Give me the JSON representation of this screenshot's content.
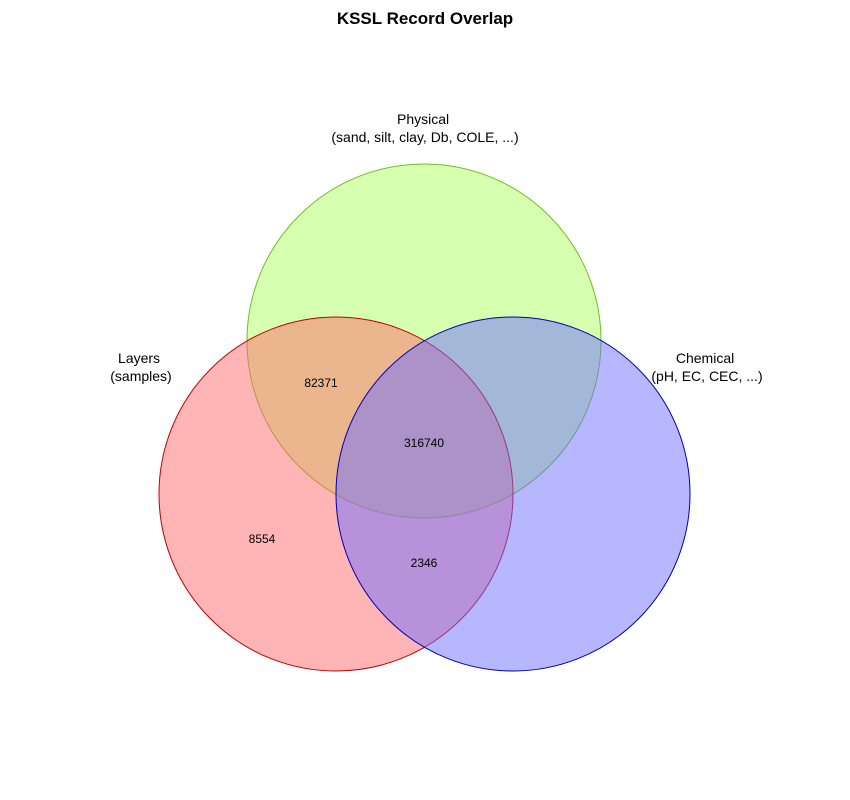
{
  "title": "KSSL Record Overlap",
  "sets": {
    "physical": {
      "line1": "Physical",
      "line2": "(sand, silt, clay, Db, COLE, ...)",
      "fill": "#d6ffb0",
      "stroke": "#6fbf1f"
    },
    "layers": {
      "line1": "Layers",
      "line2": "(samples)",
      "fill": "#ff6b6b",
      "stroke": "#c00000"
    },
    "chemical": {
      "line1": "Chemical",
      "line2": "(pH, EC, CEC, ...)",
      "fill": "#7070ff",
      "stroke": "#0000b0"
    }
  },
  "regions": {
    "layers_physical": "82371",
    "all_three": "316740",
    "layers_only": "8554",
    "layers_chemical": "2346"
  }
}
